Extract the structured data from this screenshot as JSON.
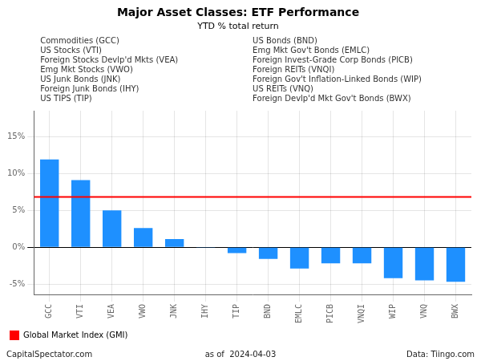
{
  "chart_data": {
    "type": "bar",
    "title": "Major Asset Classes: ETF Performance",
    "subtitle": "YTD % total return",
    "categories": [
      "GCC",
      "VTI",
      "VEA",
      "VWO",
      "JNK",
      "IHY",
      "TIP",
      "BND",
      "EMLC",
      "PICB",
      "VNQI",
      "WIP",
      "VNQ",
      "BWX"
    ],
    "values": [
      11.9,
      9.1,
      5.0,
      2.6,
      1.1,
      -0.05,
      -0.8,
      -1.6,
      -2.9,
      -2.2,
      -2.2,
      -4.2,
      -4.5,
      -4.7
    ],
    "color": "#1E90FF",
    "ylim": [
      -6.5,
      18.5
    ],
    "yticks": [
      {
        "value": -5,
        "label": "-5%"
      },
      {
        "value": 0,
        "label": "0%"
      },
      {
        "value": 5,
        "label": "5%"
      },
      {
        "value": 10,
        "label": "10%"
      },
      {
        "value": 15,
        "label": "15%"
      }
    ],
    "grid": true,
    "legend": "lower left",
    "reference_line": {
      "name": "Global Market Index (GMI)",
      "value": 6.8,
      "color": "#FF0000"
    },
    "annotations": [
      "Commodities (GCC)",
      "US Stocks (VTI)",
      "Foreign Stocks Devlp'd Mkts (VEA)",
      "Emg Mkt Stocks (VWO)",
      "US Junk Bonds (JNK)",
      "Foreign Junk Bonds (IHY)",
      "US TIPS (TIP)",
      "US Bonds (BND)",
      "Emg Mkt Gov't Bonds (EMLC)",
      "Foreign Invest-Grade Corp Bonds (PICB)",
      "Foreign REITs (VNQI)",
      "Foreign Gov't Inflation-Linked Bonds (WIP)",
      "US REITs (VNQ)",
      "Foreign Devlp'd Mkt Gov't Bonds (BWX)"
    ],
    "footer": [
      "CapitalSpectator.com",
      "as of  2024-04-03",
      "Data: Tiingo.com"
    ]
  }
}
